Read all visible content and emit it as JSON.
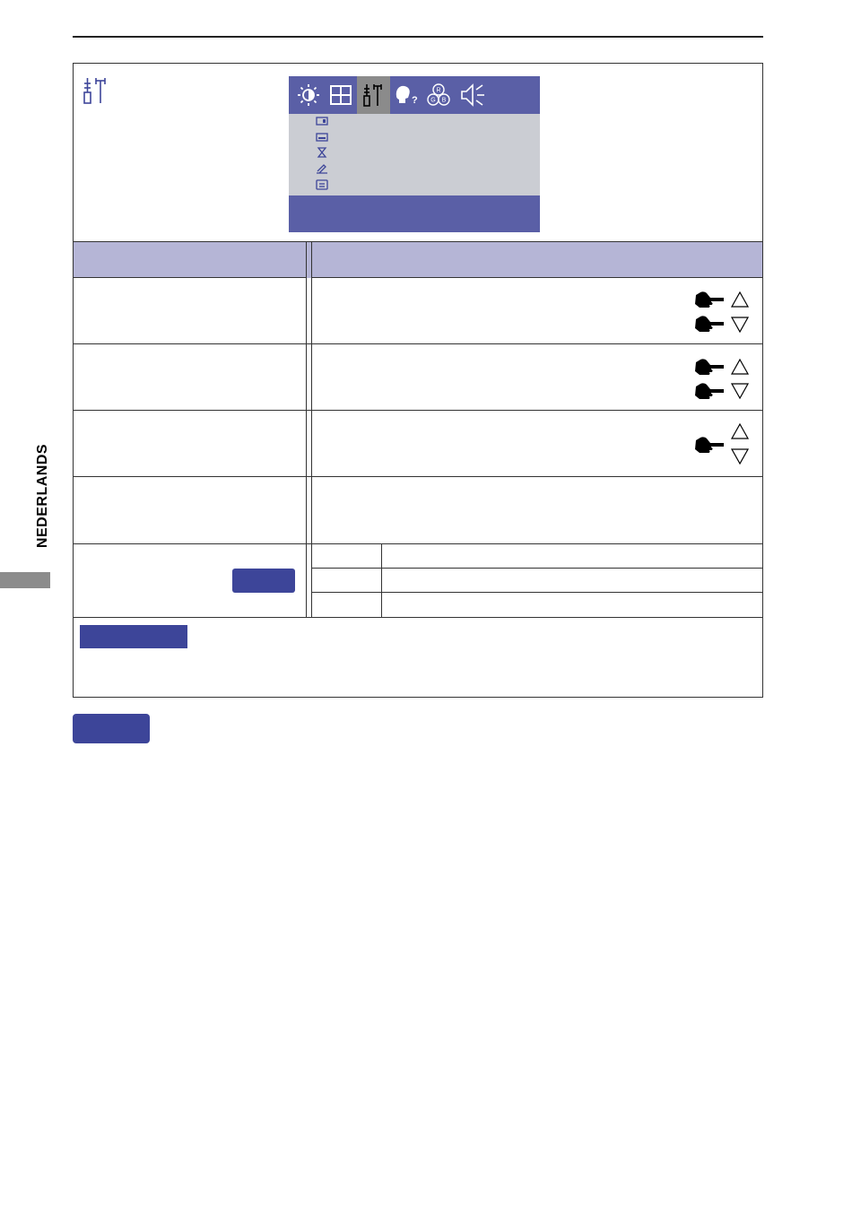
{
  "side_tab": {
    "label": "NEDERLANDS"
  },
  "page": {
    "section_icon": "tools-icon",
    "colors": {
      "osd_blue": "#5a5fa6",
      "osd_grey": "#cbcdd3",
      "header_lavender": "#b5b5d6",
      "button_blue": "#3d4599",
      "side_tab_grey": "#8c8c8c"
    }
  },
  "osd_menu": {
    "tabs": [
      {
        "icon": "brightness-contrast-icon",
        "active": false
      },
      {
        "icon": "image-grid-icon",
        "active": false
      },
      {
        "icon": "tools-icon",
        "active": true
      },
      {
        "icon": "language-help-icon",
        "active": false
      },
      {
        "icon": "rgb-color-icon",
        "active": false
      },
      {
        "icon": "speaker-icon",
        "active": false
      }
    ],
    "items": [
      {
        "icon": "input-select-icon"
      },
      {
        "icon": "osd-position-icon"
      },
      {
        "icon": "timer-hourglass-icon"
      },
      {
        "icon": "pen-adjust-icon"
      },
      {
        "icon": "information-icon"
      }
    ]
  },
  "rows": [
    {
      "adjust_icons": [
        "hand-pointer-icon",
        "triangle-up-icon",
        "hand-pointer-icon",
        "triangle-down-icon"
      ]
    },
    {
      "adjust_icons": [
        "hand-pointer-icon",
        "triangle-up-icon",
        "hand-pointer-icon",
        "triangle-down-icon"
      ]
    },
    {
      "adjust_icons": [
        "hand-pointer-icon",
        "triangle-up-icon",
        "triangle-down-icon"
      ]
    },
    {
      "adjust_icons": []
    }
  ]
}
